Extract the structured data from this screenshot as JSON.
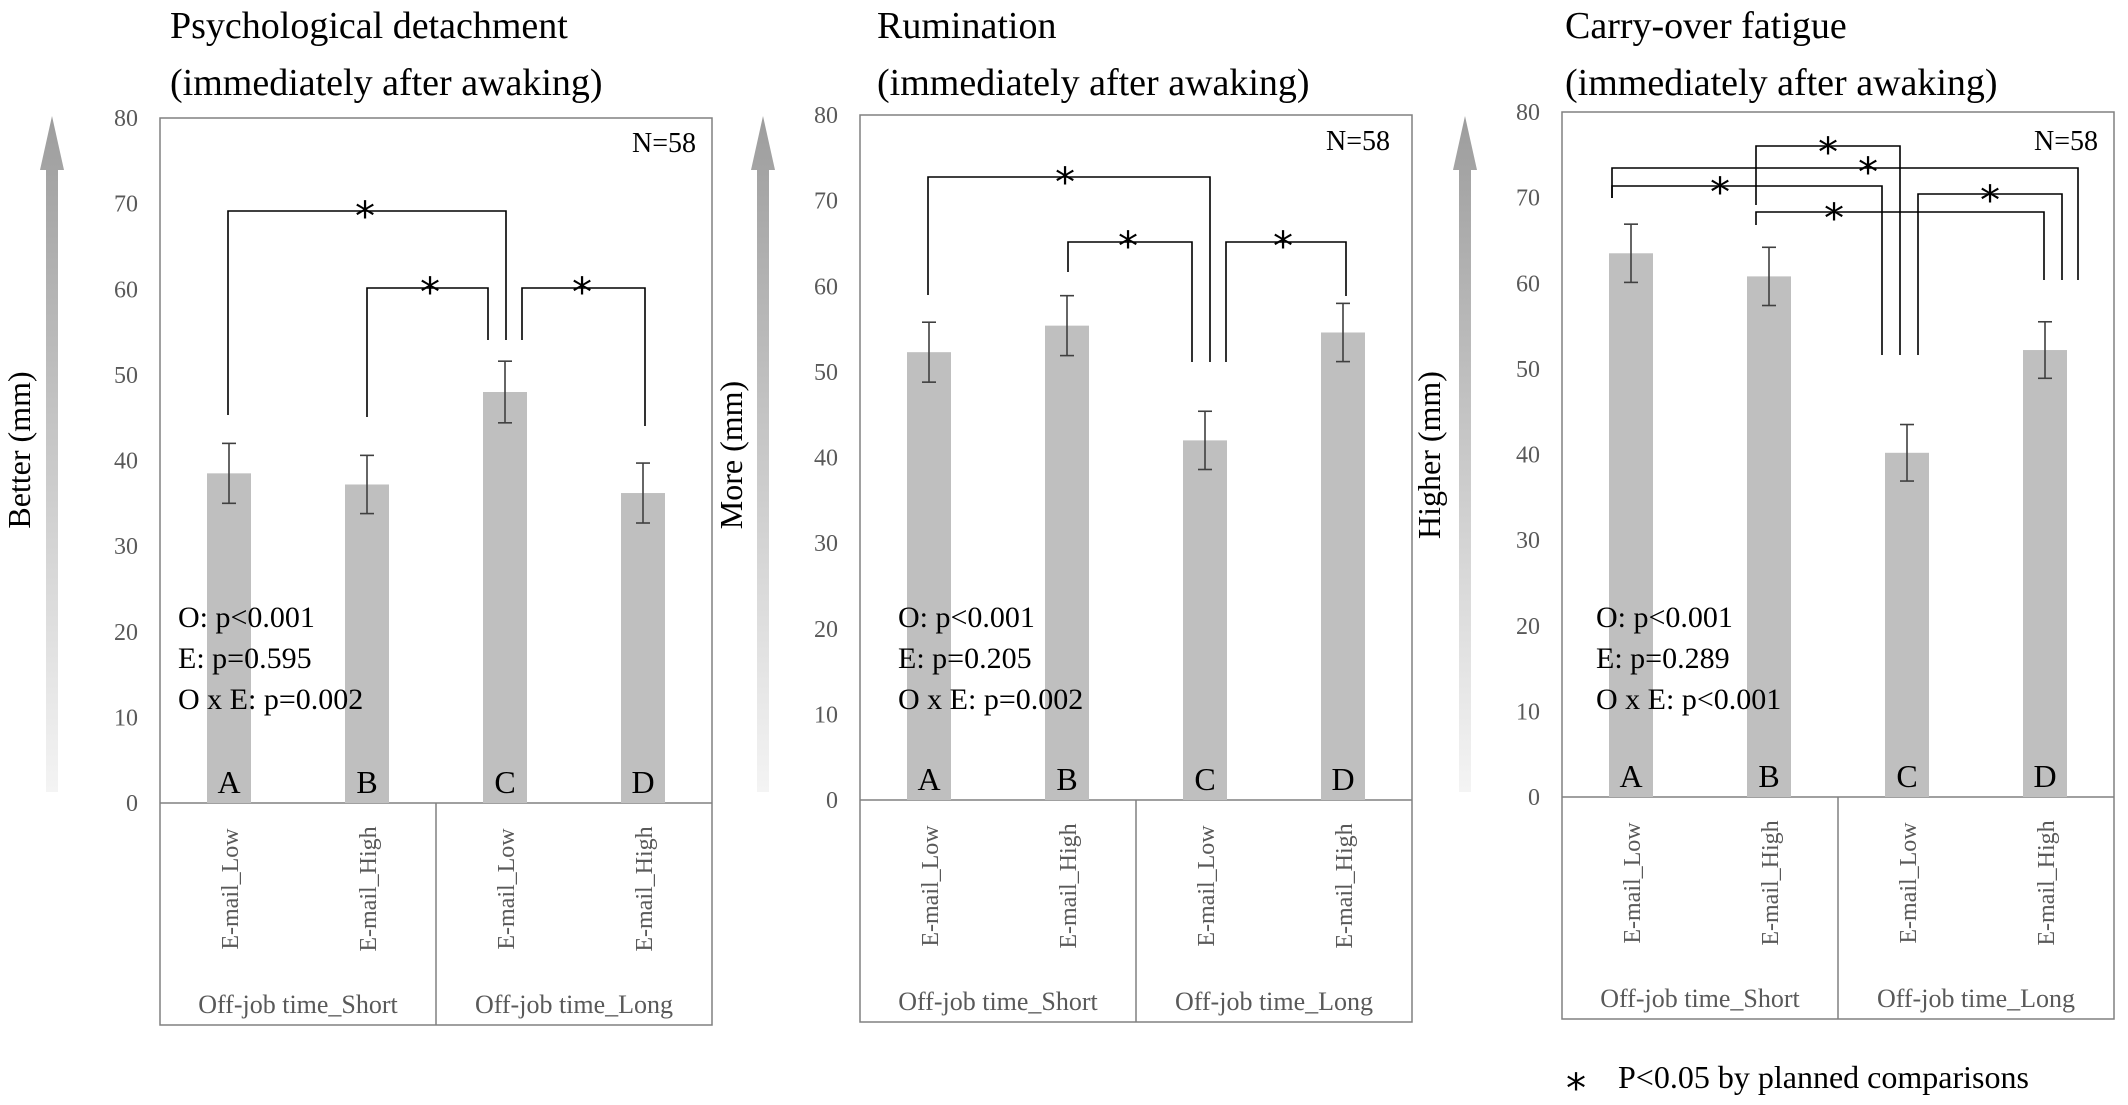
{
  "colors": {
    "bar": "#bfbfbf",
    "axis": "#808080",
    "text": "#000000",
    "tick": "#595959",
    "error": "#404040",
    "arrow_top": "#9d9d9d",
    "arrow_bottom": "#f4f4f4"
  },
  "footnote": {
    "symbol": "*",
    "text": "P<0.05 by planned comparisons"
  },
  "chart_data": [
    {
      "type": "bar",
      "title": [
        "Psychological detachment",
        "(immediately after awaking)"
      ],
      "ylabel": "Better (mm)",
      "ylim": [
        0,
        80
      ],
      "yticks": [
        "0",
        "10",
        "20",
        "30",
        "40",
        "50",
        "60",
        "70",
        "80"
      ],
      "categories": [
        "E-mail_Low",
        "E-mail_High",
        "E-mail_Low",
        "E-mail_High"
      ],
      "bar_letters": [
        "A",
        "B",
        "C",
        "D"
      ],
      "groups": [
        "Off-job time_Short",
        "Off-job time_Long"
      ],
      "values": [
        38.5,
        37.2,
        48.0,
        36.2
      ],
      "errors": [
        3.5,
        3.4,
        3.6,
        3.5
      ],
      "n_label": "N=58",
      "stats": [
        "O: p<0.001",
        "E: p=0.595",
        "O x E: p=0.002"
      ],
      "comparisons": [
        {
          "from": "A",
          "to": "C",
          "label": "*"
        },
        {
          "from": "B",
          "to": "C",
          "label": "*"
        },
        {
          "from": "C",
          "to": "D",
          "label": "*"
        }
      ],
      "grid": false
    },
    {
      "type": "bar",
      "title": [
        "Rumination",
        "(immediately after awaking)"
      ],
      "ylabel": "More (mm)",
      "ylim": [
        0,
        80
      ],
      "yticks": [
        "0",
        "10",
        "20",
        "30",
        "40",
        "50",
        "60",
        "70",
        "80"
      ],
      "categories": [
        "E-mail_Low",
        "E-mail_High",
        "E-mail_Low",
        "E-mail_High"
      ],
      "bar_letters": [
        "A",
        "B",
        "C",
        "D"
      ],
      "groups": [
        "Off-job time_Short",
        "Off-job time_Long"
      ],
      "values": [
        52.3,
        55.4,
        42.0,
        54.6
      ],
      "errors": [
        3.5,
        3.5,
        3.4,
        3.4
      ],
      "n_label": "N=58",
      "stats": [
        "O: p<0.001",
        "E: p=0.205",
        "O x E: p=0.002"
      ],
      "comparisons": [
        {
          "from": "A",
          "to": "C",
          "label": "*"
        },
        {
          "from": "B",
          "to": "C",
          "label": "*"
        },
        {
          "from": "C",
          "to": "D",
          "label": "*"
        }
      ],
      "grid": false
    },
    {
      "type": "bar",
      "title": [
        "Carry-over fatigue",
        "(immediately after awaking)"
      ],
      "ylabel": "Higher (mm)",
      "ylim": [
        0,
        80
      ],
      "yticks": [
        "0",
        "10",
        "20",
        "30",
        "40",
        "50",
        "60",
        "70",
        "80"
      ],
      "categories": [
        "E-mail_Low",
        "E-mail_High",
        "E-mail_Low",
        "E-mail_High"
      ],
      "bar_letters": [
        "A",
        "B",
        "C",
        "D"
      ],
      "groups": [
        "Off-job time_Short",
        "Off-job time_Long"
      ],
      "values": [
        63.5,
        60.8,
        40.2,
        52.2
      ],
      "errors": [
        3.4,
        3.4,
        3.3,
        3.3
      ],
      "n_label": "N=58",
      "stats": [
        "O: p<0.001",
        "E: p=0.289",
        "O x E: p<0.001"
      ],
      "comparisons": [
        {
          "from": "A",
          "to": "C",
          "label": "*"
        },
        {
          "from": "A",
          "to": "D",
          "label": "*"
        },
        {
          "from": "B",
          "to": "C",
          "label": "*"
        },
        {
          "from": "B",
          "to": "D",
          "label": "*"
        },
        {
          "from": "C",
          "to": "D",
          "label": "*"
        }
      ],
      "grid": false
    }
  ]
}
